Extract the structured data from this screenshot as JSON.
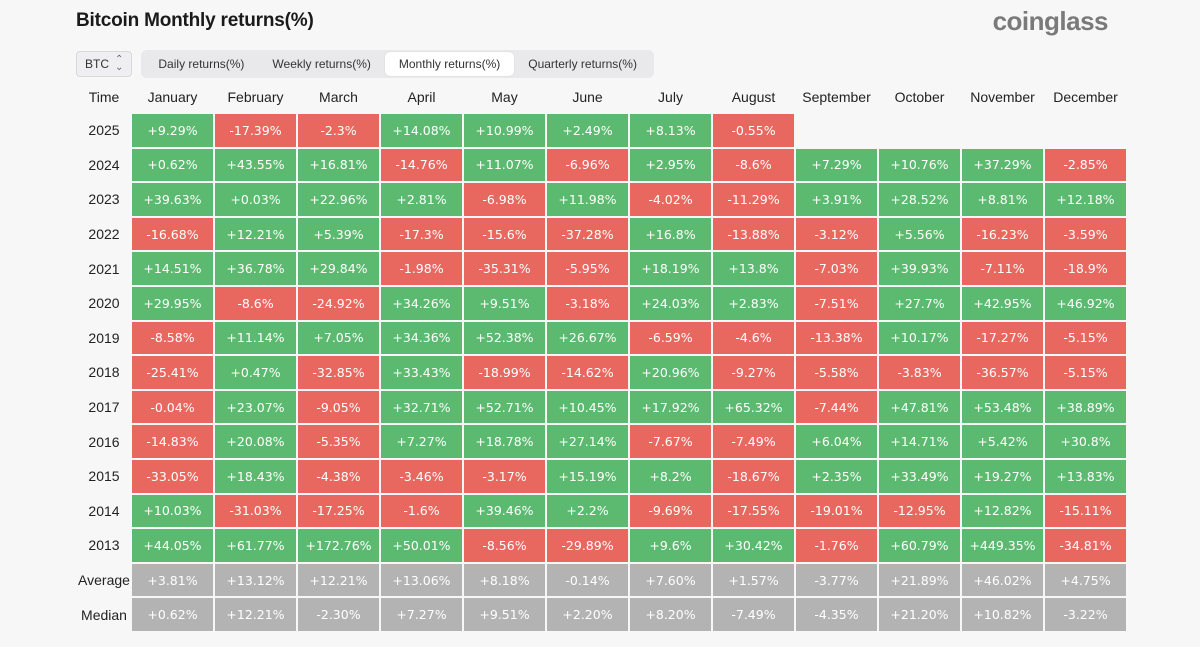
{
  "title": "Bitcoin Monthly returns(%)",
  "brand": "coinglass",
  "coin_select": {
    "value": "BTC"
  },
  "tabs": [
    {
      "label": "Daily returns(%)",
      "active": false
    },
    {
      "label": "Weekly returns(%)",
      "active": false
    },
    {
      "label": "Monthly returns(%)",
      "active": true
    },
    {
      "label": "Quarterly returns(%)",
      "active": false
    }
  ],
  "colors": {
    "positive": "#5bba6f",
    "negative": "#e8675f",
    "neutral": "#b3b3b3"
  },
  "table": {
    "headers": [
      "Time",
      "January",
      "February",
      "March",
      "April",
      "May",
      "June",
      "July",
      "August",
      "September",
      "October",
      "November",
      "December"
    ],
    "rows": [
      {
        "label": "2025",
        "cells": [
          "+9.29%",
          "-17.39%",
          "-2.3%",
          "+14.08%",
          "+10.99%",
          "+2.49%",
          "+8.13%",
          "-0.55%",
          "",
          "",
          "",
          ""
        ]
      },
      {
        "label": "2024",
        "cells": [
          "+0.62%",
          "+43.55%",
          "+16.81%",
          "-14.76%",
          "+11.07%",
          "-6.96%",
          "+2.95%",
          "-8.6%",
          "+7.29%",
          "+10.76%",
          "+37.29%",
          "-2.85%"
        ]
      },
      {
        "label": "2023",
        "cells": [
          "+39.63%",
          "+0.03%",
          "+22.96%",
          "+2.81%",
          "-6.98%",
          "+11.98%",
          "-4.02%",
          "-11.29%",
          "+3.91%",
          "+28.52%",
          "+8.81%",
          "+12.18%"
        ]
      },
      {
        "label": "2022",
        "cells": [
          "-16.68%",
          "+12.21%",
          "+5.39%",
          "-17.3%",
          "-15.6%",
          "-37.28%",
          "+16.8%",
          "-13.88%",
          "-3.12%",
          "+5.56%",
          "-16.23%",
          "-3.59%"
        ]
      },
      {
        "label": "2021",
        "cells": [
          "+14.51%",
          "+36.78%",
          "+29.84%",
          "-1.98%",
          "-35.31%",
          "-5.95%",
          "+18.19%",
          "+13.8%",
          "-7.03%",
          "+39.93%",
          "-7.11%",
          "-18.9%"
        ]
      },
      {
        "label": "2020",
        "cells": [
          "+29.95%",
          "-8.6%",
          "-24.92%",
          "+34.26%",
          "+9.51%",
          "-3.18%",
          "+24.03%",
          "+2.83%",
          "-7.51%",
          "+27.7%",
          "+42.95%",
          "+46.92%"
        ]
      },
      {
        "label": "2019",
        "cells": [
          "-8.58%",
          "+11.14%",
          "+7.05%",
          "+34.36%",
          "+52.38%",
          "+26.67%",
          "-6.59%",
          "-4.6%",
          "-13.38%",
          "+10.17%",
          "-17.27%",
          "-5.15%"
        ]
      },
      {
        "label": "2018",
        "cells": [
          "-25.41%",
          "+0.47%",
          "-32.85%",
          "+33.43%",
          "-18.99%",
          "-14.62%",
          "+20.96%",
          "-9.27%",
          "-5.58%",
          "-3.83%",
          "-36.57%",
          "-5.15%"
        ]
      },
      {
        "label": "2017",
        "cells": [
          "-0.04%",
          "+23.07%",
          "-9.05%",
          "+32.71%",
          "+52.71%",
          "+10.45%",
          "+17.92%",
          "+65.32%",
          "-7.44%",
          "+47.81%",
          "+53.48%",
          "+38.89%"
        ]
      },
      {
        "label": "2016",
        "cells": [
          "-14.83%",
          "+20.08%",
          "-5.35%",
          "+7.27%",
          "+18.78%",
          "+27.14%",
          "-7.67%",
          "-7.49%",
          "+6.04%",
          "+14.71%",
          "+5.42%",
          "+30.8%"
        ]
      },
      {
        "label": "2015",
        "cells": [
          "-33.05%",
          "+18.43%",
          "-4.38%",
          "-3.46%",
          "-3.17%",
          "+15.19%",
          "+8.2%",
          "-18.67%",
          "+2.35%",
          "+33.49%",
          "+19.27%",
          "+13.83%"
        ]
      },
      {
        "label": "2014",
        "cells": [
          "+10.03%",
          "-31.03%",
          "-17.25%",
          "-1.6%",
          "+39.46%",
          "+2.2%",
          "-9.69%",
          "-17.55%",
          "-19.01%",
          "-12.95%",
          "+12.82%",
          "-15.11%"
        ]
      },
      {
        "label": "2013",
        "cells": [
          "+44.05%",
          "+61.77%",
          "+172.76%",
          "+50.01%",
          "-8.56%",
          "-29.89%",
          "+9.6%",
          "+30.42%",
          "-1.76%",
          "+60.79%",
          "+449.35%",
          "-34.81%"
        ]
      }
    ],
    "summary": [
      {
        "label": "Average",
        "cells": [
          "+3.81%",
          "+13.12%",
          "+12.21%",
          "+13.06%",
          "+8.18%",
          "-0.14%",
          "+7.60%",
          "+1.57%",
          "-3.77%",
          "+21.89%",
          "+46.02%",
          "+4.75%"
        ]
      },
      {
        "label": "Median",
        "cells": [
          "+0.62%",
          "+12.21%",
          "-2.30%",
          "+7.27%",
          "+9.51%",
          "+2.20%",
          "+8.20%",
          "-7.49%",
          "-4.35%",
          "+21.20%",
          "+10.82%",
          "-3.22%"
        ]
      }
    ]
  }
}
